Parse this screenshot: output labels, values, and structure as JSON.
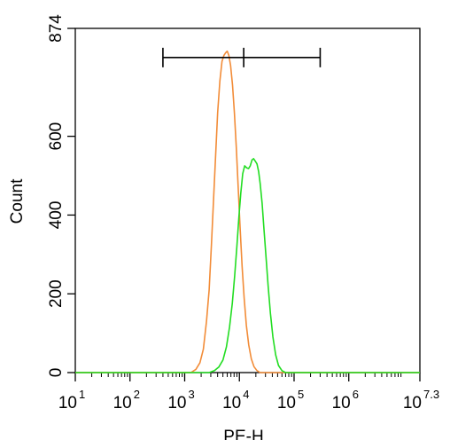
{
  "chart_data": {
    "type": "histogram",
    "xlabel": "PE-H",
    "ylabel": "Count",
    "x_scale": "log10",
    "xlim": [
      10,
      19952623
    ],
    "ylim": [
      0,
      874
    ],
    "x_ticks": [
      {
        "base": "10",
        "exp": "1",
        "value": 10
      },
      {
        "base": "10",
        "exp": "2",
        "value": 100
      },
      {
        "base": "10",
        "exp": "3",
        "value": 1000
      },
      {
        "base": "10",
        "exp": "4",
        "value": 10000
      },
      {
        "base": "10",
        "exp": "5",
        "value": 100000
      },
      {
        "base": "10",
        "exp": "6",
        "value": 1000000
      },
      {
        "base": "10",
        "exp": "7.3",
        "value": 19952623
      }
    ],
    "y_ticks": [
      {
        "label": "0",
        "value": 0
      },
      {
        "label": "200",
        "value": 200
      },
      {
        "label": "400",
        "value": 400
      },
      {
        "label": "600",
        "value": 600
      },
      {
        "label": "874",
        "value": 874
      }
    ],
    "gate": {
      "x_start": 400,
      "x_mid": 12000,
      "x_end": 300000,
      "y": 800
    },
    "series": [
      {
        "color": "#f28c38",
        "points": [
          [
            1300,
            0
          ],
          [
            1600,
            8
          ],
          [
            1900,
            25
          ],
          [
            2200,
            60
          ],
          [
            2500,
            130
          ],
          [
            2800,
            210
          ],
          [
            3100,
            330
          ],
          [
            3400,
            450
          ],
          [
            3700,
            560
          ],
          [
            4000,
            660
          ],
          [
            4400,
            740
          ],
          [
            4800,
            790
          ],
          [
            5200,
            805
          ],
          [
            5600,
            812
          ],
          [
            6000,
            816
          ],
          [
            6400,
            806
          ],
          [
            6900,
            780
          ],
          [
            7500,
            730
          ],
          [
            8100,
            660
          ],
          [
            8800,
            570
          ],
          [
            9500,
            470
          ],
          [
            10300,
            370
          ],
          [
            11200,
            270
          ],
          [
            12200,
            190
          ],
          [
            13400,
            120
          ],
          [
            14800,
            70
          ],
          [
            16500,
            35
          ],
          [
            18500,
            15
          ],
          [
            21000,
            5
          ],
          [
            24000,
            0
          ]
        ]
      },
      {
        "color": "#22dd22",
        "points": [
          [
            2800,
            0
          ],
          [
            3500,
            5
          ],
          [
            4200,
            14
          ],
          [
            5000,
            32
          ],
          [
            5800,
            65
          ],
          [
            6600,
            115
          ],
          [
            7400,
            175
          ],
          [
            8200,
            245
          ],
          [
            9000,
            320
          ],
          [
            9800,
            395
          ],
          [
            10600,
            455
          ],
          [
            11500,
            505
          ],
          [
            12500,
            525
          ],
          [
            13600,
            520
          ],
          [
            14700,
            518
          ],
          [
            15800,
            525
          ],
          [
            17000,
            540
          ],
          [
            18200,
            543
          ],
          [
            19500,
            537
          ],
          [
            21000,
            530
          ],
          [
            22500,
            510
          ],
          [
            24000,
            480
          ],
          [
            26000,
            430
          ],
          [
            28000,
            370
          ],
          [
            30500,
            300
          ],
          [
            33500,
            220
          ],
          [
            37000,
            150
          ],
          [
            41000,
            90
          ],
          [
            46000,
            45
          ],
          [
            52000,
            18
          ],
          [
            60000,
            5
          ],
          [
            70000,
            0
          ]
        ]
      }
    ]
  }
}
